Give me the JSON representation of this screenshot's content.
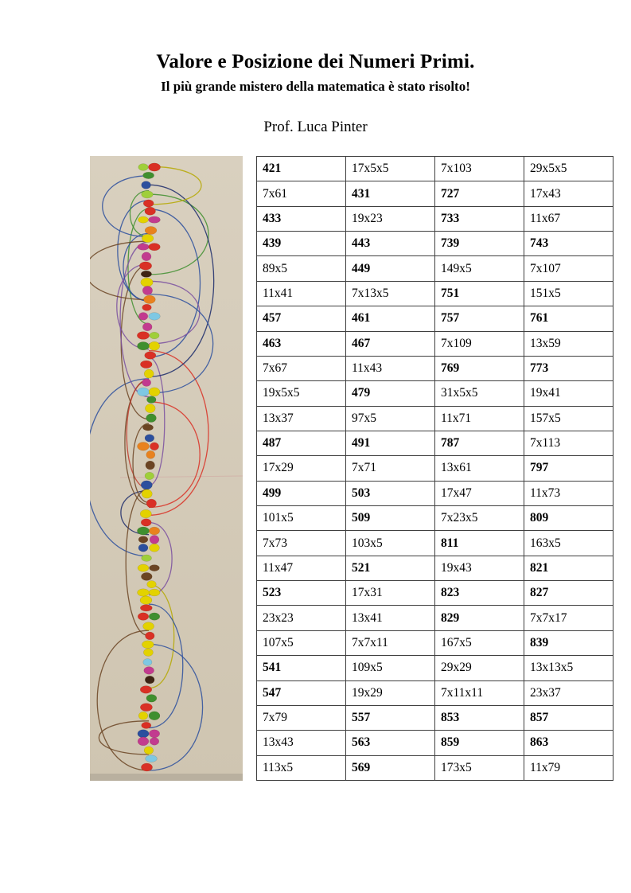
{
  "page": {
    "title": "Valore e Posizione dei Numeri Primi.",
    "subtitle": "Il più grande mistero della matematica è stato risolto!",
    "author": "Prof. Luca Pinter"
  },
  "artwork": {
    "alt": "Photograph of an artwork: a vertical chain of small colored dots (yellow, red, green, blue, orange, brown) on cream paper, linked by curved colored thread-like arcs on both sides",
    "paper_color": "#d9d0bf",
    "paper_color_bottom": "#cfc5b1",
    "crease_color": "#d2b4aa",
    "dot_colors": [
      "#e3d200",
      "#e3d200",
      "#e3d200",
      "#e3d200",
      "#d93025",
      "#d93025",
      "#d93025",
      "#3f8f2f",
      "#3f8f2f",
      "#2c4f9e",
      "#e8821e",
      "#6b4423",
      "#7ec8e3",
      "#3d2414",
      "#c23b8f",
      "#9fcf3a"
    ],
    "arc_colors": [
      "#c0392b",
      "#e8821e",
      "#b5a800",
      "#3f8f2f",
      "#2c4f9e",
      "#1b2a6b",
      "#7a4fa0",
      "#6b4423",
      "#d93025"
    ]
  },
  "table": {
    "rows": [
      [
        {
          "t": "421",
          "b": true
        },
        {
          "t": "17x5x5",
          "b": false
        },
        {
          "t": "7x103",
          "b": false
        },
        {
          "t": "29x5x5",
          "b": false
        }
      ],
      [
        {
          "t": "7x61",
          "b": false
        },
        {
          "t": "431",
          "b": true
        },
        {
          "t": "727",
          "b": true
        },
        {
          "t": "17x43",
          "b": false
        }
      ],
      [
        {
          "t": "433",
          "b": true
        },
        {
          "t": "19x23",
          "b": false
        },
        {
          "t": "733",
          "b": true
        },
        {
          "t": "11x67",
          "b": false
        }
      ],
      [
        {
          "t": "439",
          "b": true
        },
        {
          "t": "443",
          "b": true
        },
        {
          "t": "739",
          "b": true
        },
        {
          "t": "743",
          "b": true
        }
      ],
      [
        {
          "t": "89x5",
          "b": false
        },
        {
          "t": "449",
          "b": true
        },
        {
          "t": "149x5",
          "b": false
        },
        {
          "t": "7x107",
          "b": false
        }
      ],
      [
        {
          "t": "11x41",
          "b": false
        },
        {
          "t": "7x13x5",
          "b": false
        },
        {
          "t": "751",
          "b": true
        },
        {
          "t": "151x5",
          "b": false
        }
      ],
      [
        {
          "t": "457",
          "b": true
        },
        {
          "t": "461",
          "b": true
        },
        {
          "t": "757",
          "b": true
        },
        {
          "t": "761",
          "b": true
        }
      ],
      [
        {
          "t": "463",
          "b": true
        },
        {
          "t": "467",
          "b": true
        },
        {
          "t": "7x109",
          "b": false
        },
        {
          "t": "13x59",
          "b": false
        }
      ],
      [
        {
          "t": "7x67",
          "b": false
        },
        {
          "t": "11x43",
          "b": false
        },
        {
          "t": "769",
          "b": true
        },
        {
          "t": "773",
          "b": true
        }
      ],
      [
        {
          "t": "19x5x5",
          "b": false
        },
        {
          "t": "479",
          "b": true
        },
        {
          "t": "31x5x5",
          "b": false
        },
        {
          "t": "19x41",
          "b": false
        }
      ],
      [
        {
          "t": "13x37",
          "b": false
        },
        {
          "t": "97x5",
          "b": false
        },
        {
          "t": "11x71",
          "b": false
        },
        {
          "t": "157x5",
          "b": false
        }
      ],
      [
        {
          "t": "487",
          "b": true
        },
        {
          "t": "491",
          "b": true
        },
        {
          "t": "787",
          "b": true
        },
        {
          "t": "7x113",
          "b": false
        }
      ],
      [
        {
          "t": "17x29",
          "b": false
        },
        {
          "t": "7x71",
          "b": false
        },
        {
          "t": "13x61",
          "b": false
        },
        {
          "t": "797",
          "b": true
        }
      ],
      [
        {
          "t": "499",
          "b": true
        },
        {
          "t": "503",
          "b": true
        },
        {
          "t": "17x47",
          "b": false
        },
        {
          "t": "11x73",
          "b": false
        }
      ],
      [
        {
          "t": "101x5",
          "b": false
        },
        {
          "t": "509",
          "b": true
        },
        {
          "t": "7x23x5",
          "b": false
        },
        {
          "t": "809",
          "b": true
        }
      ],
      [
        {
          "t": "7x73",
          "b": false
        },
        {
          "t": "103x5",
          "b": false
        },
        {
          "t": "811",
          "b": true
        },
        {
          "t": "163x5",
          "b": false
        }
      ],
      [
        {
          "t": "11x47",
          "b": false
        },
        {
          "t": "521",
          "b": true
        },
        {
          "t": "19x43",
          "b": false
        },
        {
          "t": "821",
          "b": true
        }
      ],
      [
        {
          "t": "523",
          "b": true
        },
        {
          "t": "17x31",
          "b": false
        },
        {
          "t": "823",
          "b": true
        },
        {
          "t": "827",
          "b": true
        }
      ],
      [
        {
          "t": "23x23",
          "b": false
        },
        {
          "t": "13x41",
          "b": false
        },
        {
          "t": "829",
          "b": true
        },
        {
          "t": "7x7x17",
          "b": false
        }
      ],
      [
        {
          "t": "107x5",
          "b": false
        },
        {
          "t": "7x7x11",
          "b": false
        },
        {
          "t": "167x5",
          "b": false
        },
        {
          "t": "839",
          "b": true
        }
      ],
      [
        {
          "t": "541",
          "b": true
        },
        {
          "t": "109x5",
          "b": false
        },
        {
          "t": "29x29",
          "b": false
        },
        {
          "t": "13x13x5",
          "b": false
        }
      ],
      [
        {
          "t": "547",
          "b": true
        },
        {
          "t": "19x29",
          "b": false
        },
        {
          "t": "7x11x11",
          "b": false
        },
        {
          "t": "23x37",
          "b": false
        }
      ],
      [
        {
          "t": "7x79",
          "b": false
        },
        {
          "t": "557",
          "b": true
        },
        {
          "t": "853",
          "b": true
        },
        {
          "t": "857",
          "b": true
        }
      ],
      [
        {
          "t": "13x43",
          "b": false
        },
        {
          "t": "563",
          "b": true
        },
        {
          "t": "859",
          "b": true
        },
        {
          "t": "863",
          "b": true
        }
      ],
      [
        {
          "t": "113x5",
          "b": false
        },
        {
          "t": "569",
          "b": true
        },
        {
          "t": "173x5",
          "b": false
        },
        {
          "t": "11x79",
          "b": false
        }
      ]
    ]
  }
}
